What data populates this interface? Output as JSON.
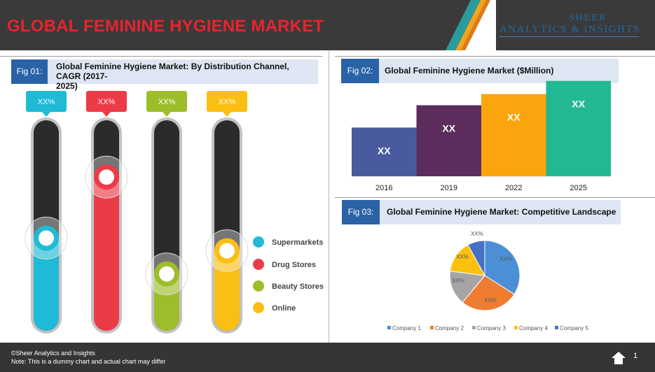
{
  "header": {
    "title": "GLOBAL FEMININE HYGIENE MARKET",
    "brand_line1": "SHEER",
    "brand_line2": "ANALYTICS & INSIGHTS"
  },
  "colors": {
    "accent_red": "#e8232f",
    "fig_tag_blue": "#2a62a6",
    "supermarkets": "#1ebad6",
    "drug_stores": "#ec3b47",
    "beauty_stores": "#9dbd2b",
    "online": "#fbbf13"
  },
  "fig1": {
    "tag": "Fig 01:",
    "title_line1": "Global Feminine Hygiene Market: By Distribution Channel,  CAGR (2017-",
    "title_line2": "2025)"
  },
  "fig2": {
    "tag": "Fig 02:",
    "title": "Global Feminine Hygiene Market ($Million)"
  },
  "fig3": {
    "tag": "Fig 03:",
    "title": "Global Feminine Hygiene Market: Competitive Landscape"
  },
  "chart_data": [
    {
      "type": "bar",
      "subtype": "vertical-gauge",
      "title": "Global Feminine Hygiene Market: By Distribution Channel,  CAGR (2017-2025)",
      "categories": [
        "Supermarkets",
        "Drug Stores",
        "Beauty Stores",
        "Online"
      ],
      "labels": [
        "XX%",
        "XX%",
        "XX%",
        "XX%"
      ],
      "values": [
        0.44,
        0.73,
        0.27,
        0.38
      ],
      "colors": [
        "#1ebad6",
        "#ec3b47",
        "#9dbd2b",
        "#fbbf13"
      ],
      "legend_position": "right"
    },
    {
      "type": "bar",
      "title": "Global Feminine Hygiene Market ($Million)",
      "categories": [
        "2016",
        "2019",
        "2022",
        "2025"
      ],
      "values": [
        48,
        70,
        81,
        94
      ],
      "data_labels": [
        "XX",
        "XX",
        "XX",
        "XX"
      ],
      "colors": [
        "#4a5a9e",
        "#5c2d5c",
        "#fba50e",
        "#21b893"
      ],
      "ylim": [
        0,
        100
      ]
    },
    {
      "type": "pie",
      "title": "Global Feminine Hygiene Market: Competitive Landscape",
      "categories": [
        "Company 1",
        "Company 2",
        "Company 3",
        "Company 4",
        "Company 5"
      ],
      "values": [
        34,
        27,
        16,
        15,
        8
      ],
      "data_labels": [
        "XX%",
        "XX%",
        "XX%",
        "XX%",
        "XX%"
      ],
      "colors": [
        "#4b8fd6",
        "#ef7d31",
        "#a5a5a5",
        "#fec00f",
        "#4670c4"
      ],
      "legend_position": "bottom"
    }
  ],
  "footer": {
    "copyright": "©Sheer Analytics and Insights",
    "note": "Note: This is a dummy chart and actual chart may differ",
    "page_number": "1",
    "home_icon": "home-icon"
  }
}
